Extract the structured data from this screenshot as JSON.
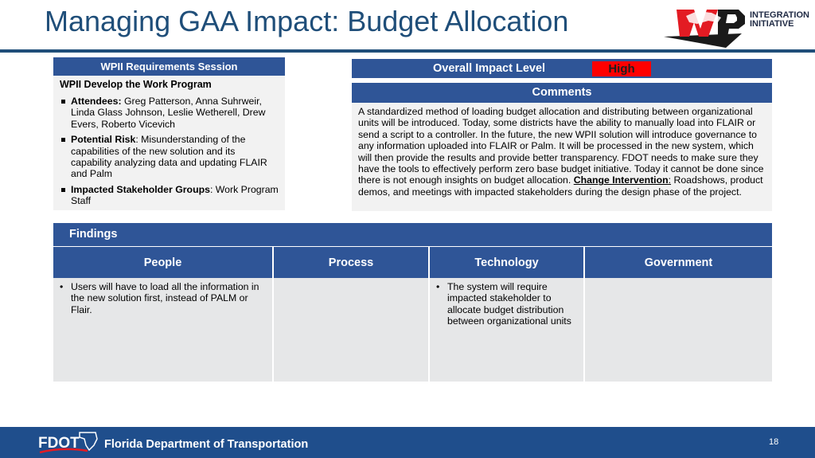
{
  "slide": {
    "title": "Managing GAA Impact: Budget Allocation",
    "logo": {
      "letters": "WP",
      "text_line1": "INTEGRATION",
      "text_line2": "INITIATIVE"
    }
  },
  "requirements": {
    "header": "WPII Requirements Session",
    "subtitle": "WPII Develop the Work Program",
    "bullets": [
      {
        "label": "Attendees:",
        "text": " Greg Patterson, Anna Suhrweir, Linda Glass Johnson, Leslie Wetherell, Drew Evers, Roberto Vicevich"
      },
      {
        "label": "Potential Risk",
        "text": ": Misunderstanding of the capabilities of the new solution and its capability analyzing data and updating FLAIR and Palm"
      },
      {
        "label": "Impacted Stakeholder Groups",
        "text": ": Work Program Staff"
      }
    ]
  },
  "impact": {
    "label": "Overall Impact Level",
    "value": "High",
    "value_color": "#ff0000"
  },
  "comments": {
    "header": "Comments",
    "body": "A standardized method of loading budget allocation and distributing between organizational units will be introduced. Today, some districts have the ability to manually load into FLAIR or send a script to a controller. In the future, the new WPII solution will introduce governance to any information uploaded into FLAIR or Palm. It will be processed in the new system, which will then provide the results and provide better transparency. FDOT needs to make sure they have the tools to effectively perform zero base budget initiative. Today it cannot be done since there is not enough insights on budget allocation.",
    "change_label": "Change Intervention",
    "change_colon": ":",
    "change_text": " Roadshows, product demos, and meetings with impacted stakeholders during the design phase of the project."
  },
  "findings": {
    "header": "Findings",
    "columns": [
      {
        "title": "People",
        "items": [
          "Users will have to load all the information in the new solution first, instead of PALM or Flair."
        ]
      },
      {
        "title": "Process",
        "items": []
      },
      {
        "title": "Technology",
        "items": [
          "The system will require impacted stakeholder to allocate budget distribution between organizational units"
        ]
      },
      {
        "title": "Government",
        "items": []
      }
    ]
  },
  "footer": {
    "logo_text": "FDOT",
    "org": "Florida Department of Transportation",
    "page": "18"
  },
  "colors": {
    "title": "#1f4e79",
    "header_fill": "#2f5597",
    "footer_fill": "#1f4e8c",
    "panel_fill": "#f2f2f2",
    "cell_fill": "#e6e7e8"
  }
}
